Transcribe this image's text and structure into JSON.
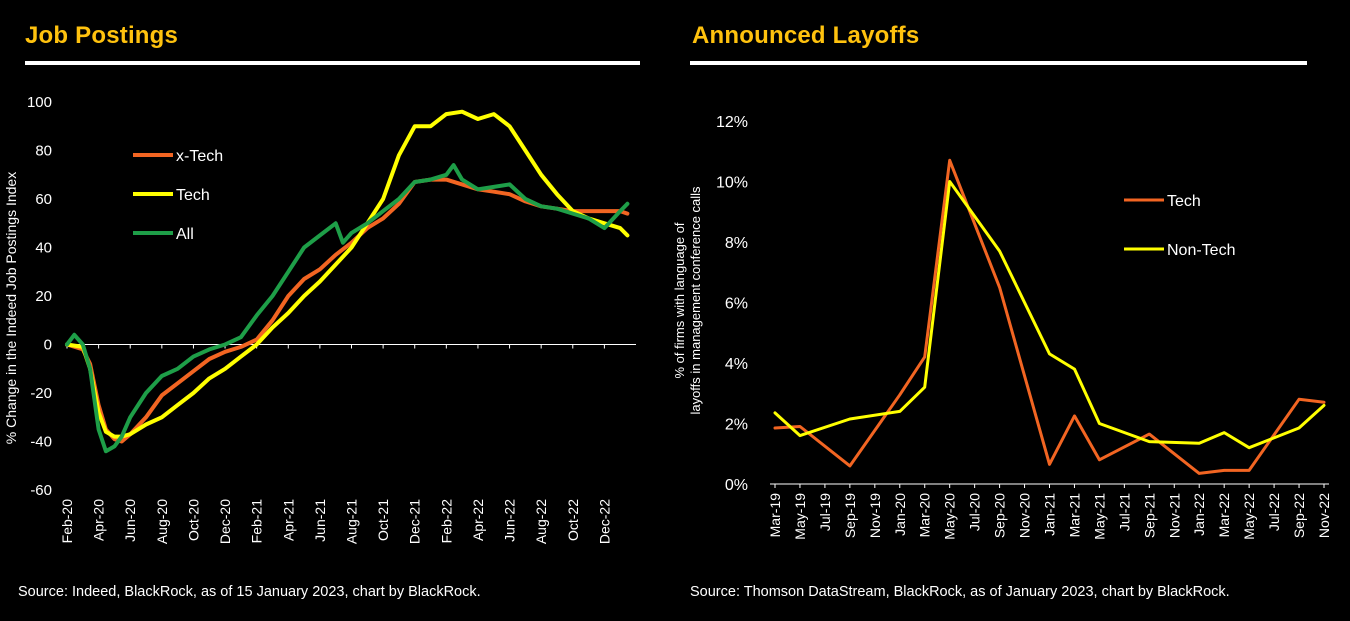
{
  "colors": {
    "accent_title": "#ffc20e",
    "xtech": "#f26522",
    "tech": "#ffff00",
    "all": "#1e9e48",
    "nontech": "#ffff00",
    "layoff_tech": "#f26522"
  },
  "left": {
    "title": "Job Postings",
    "source": "Source: Indeed, BlackRock, as of 15 January 2023, chart by BlackRock."
  },
  "right": {
    "title": "Announced Layoffs",
    "source": "Source: Thomson DataStream, BlackRock, as of January 2023, chart by BlackRock."
  },
  "chart_data": [
    {
      "type": "line",
      "title": "Job Postings",
      "ylabel": "% Change in the Indeed Job Postings Index",
      "xlabel": "",
      "ylim": [
        -60,
        100
      ],
      "yticks": [
        -60,
        -40,
        -20,
        0,
        20,
        40,
        60,
        80,
        100
      ],
      "xlim": [
        "2020-02",
        "2023-02"
      ],
      "xticks": [
        "Feb-20",
        "Apr-20",
        "Jun-20",
        "Aug-20",
        "Oct-20",
        "Dec-20",
        "Feb-21",
        "Apr-21",
        "Jun-21",
        "Aug-21",
        "Oct-21",
        "Dec-21",
        "Feb-22",
        "Apr-22",
        "Jun-22",
        "Aug-22",
        "Oct-22",
        "Dec-22"
      ],
      "legend_position": "top-left",
      "grid": false,
      "series": [
        {
          "name": "x-Tech",
          "color": "#f26522",
          "x": [
            "2020-02-01",
            "2020-03-01",
            "2020-03-15",
            "2020-04-01",
            "2020-04-15",
            "2020-05-01",
            "2020-05-15",
            "2020-06-01",
            "2020-07-01",
            "2020-08-01",
            "2020-09-01",
            "2020-10-01",
            "2020-11-01",
            "2020-12-01",
            "2021-01-01",
            "2021-02-01",
            "2021-03-01",
            "2021-04-01",
            "2021-05-01",
            "2021-06-01",
            "2021-07-01",
            "2021-08-01",
            "2021-09-01",
            "2021-10-01",
            "2021-11-01",
            "2021-12-01",
            "2022-01-01",
            "2022-02-01",
            "2022-03-01",
            "2022-04-01",
            "2022-05-01",
            "2022-06-01",
            "2022-07-01",
            "2022-08-01",
            "2022-09-01",
            "2022-10-01",
            "2022-11-01",
            "2022-12-01",
            "2023-01-01",
            "2023-01-15"
          ],
          "y": [
            0,
            -2,
            -8,
            -25,
            -35,
            -39,
            -40,
            -37,
            -30,
            -21,
            -16,
            -11,
            -6,
            -3,
            -1,
            2,
            10,
            20,
            27,
            31,
            37,
            42,
            48,
            52,
            58,
            67,
            68,
            68,
            66,
            64,
            63,
            62,
            59,
            57,
            56,
            55,
            55,
            55,
            55,
            54
          ]
        },
        {
          "name": "Tech",
          "color": "#ffff00",
          "x": [
            "2020-02-01",
            "2020-03-01",
            "2020-03-15",
            "2020-04-01",
            "2020-04-15",
            "2020-05-01",
            "2020-05-15",
            "2020-06-01",
            "2020-07-01",
            "2020-08-01",
            "2020-09-01",
            "2020-10-01",
            "2020-11-01",
            "2020-12-01",
            "2021-01-01",
            "2021-02-01",
            "2021-03-01",
            "2021-04-01",
            "2021-05-01",
            "2021-06-01",
            "2021-07-01",
            "2021-08-01",
            "2021-09-01",
            "2021-10-01",
            "2021-11-01",
            "2021-12-01",
            "2022-01-01",
            "2022-02-01",
            "2022-03-01",
            "2022-04-01",
            "2022-05-01",
            "2022-06-01",
            "2022-07-01",
            "2022-08-01",
            "2022-09-01",
            "2022-10-01",
            "2022-11-01",
            "2022-12-01",
            "2023-01-01",
            "2023-01-15"
          ],
          "y": [
            0,
            -1,
            -10,
            -28,
            -36,
            -38,
            -38,
            -37,
            -33,
            -30,
            -25,
            -20,
            -14,
            -10,
            -5,
            0,
            7,
            13,
            20,
            26,
            33,
            40,
            50,
            60,
            78,
            90,
            90,
            95,
            96,
            93,
            95,
            90,
            80,
            70,
            62,
            55,
            52,
            50,
            48,
            45
          ]
        },
        {
          "name": "All",
          "color": "#1e9e48",
          "x": [
            "2020-02-01",
            "2020-02-15",
            "2020-03-01",
            "2020-03-15",
            "2020-04-01",
            "2020-04-15",
            "2020-05-01",
            "2020-05-15",
            "2020-06-01",
            "2020-07-01",
            "2020-08-01",
            "2020-09-01",
            "2020-10-01",
            "2020-11-01",
            "2020-12-01",
            "2021-01-01",
            "2021-02-01",
            "2021-03-01",
            "2021-04-01",
            "2021-05-01",
            "2021-06-01",
            "2021-07-01",
            "2021-07-15",
            "2021-08-01",
            "2021-09-01",
            "2021-10-01",
            "2021-11-01",
            "2021-12-01",
            "2022-01-01",
            "2022-02-01",
            "2022-02-15",
            "2022-03-01",
            "2022-04-01",
            "2022-05-01",
            "2022-06-01",
            "2022-07-01",
            "2022-08-01",
            "2022-09-01",
            "2022-10-01",
            "2022-11-01",
            "2022-12-01",
            "2023-01-01",
            "2023-01-15"
          ],
          "y": [
            0,
            4,
            0,
            -10,
            -35,
            -44,
            -42,
            -38,
            -30,
            -20,
            -13,
            -10,
            -5,
            -2,
            0,
            3,
            12,
            20,
            30,
            40,
            45,
            50,
            42,
            46,
            50,
            55,
            60,
            67,
            68,
            70,
            74,
            68,
            64,
            65,
            66,
            60,
            57,
            56,
            54,
            52,
            48,
            55,
            58
          ]
        }
      ]
    },
    {
      "type": "line",
      "title": "Announced Layoffs",
      "ylabel": "% of firms with language of layoffs in management conference calls",
      "xlabel": "",
      "ylim": [
        0,
        12
      ],
      "yticks": [
        "0%",
        "2%",
        "4%",
        "6%",
        "8%",
        "10%",
        "12%"
      ],
      "categories": [
        "Mar-19",
        "May-19",
        "Jul-19",
        "Sep-19",
        "Nov-19",
        "Jan-20",
        "Mar-20",
        "May-20",
        "Jul-20",
        "Sep-20",
        "Nov-20",
        "Jan-21",
        "Mar-21",
        "May-21",
        "Jul-21",
        "Sep-21",
        "Nov-21",
        "Jan-22",
        "Mar-22",
        "May-22",
        "Jul-22",
        "Sep-22",
        "Nov-22"
      ],
      "legend_position": "right",
      "grid": false,
      "series": [
        {
          "name": "Tech",
          "color": "#f26522",
          "values": [
            1.85,
            1.9,
            null,
            0.6,
            null,
            2.95,
            4.2,
            10.7,
            null,
            6.5,
            null,
            0.65,
            2.25,
            0.8,
            null,
            1.65,
            null,
            0.35,
            0.45,
            0.45,
            null,
            2.8,
            2.7
          ]
        },
        {
          "name": "Non-Tech",
          "color": "#ffff00",
          "values": [
            2.35,
            1.6,
            null,
            2.15,
            null,
            2.4,
            3.2,
            10.0,
            null,
            7.7,
            null,
            4.3,
            3.8,
            2.0,
            null,
            1.4,
            null,
            1.35,
            1.7,
            1.2,
            null,
            1.85,
            2.6
          ]
        }
      ]
    }
  ]
}
